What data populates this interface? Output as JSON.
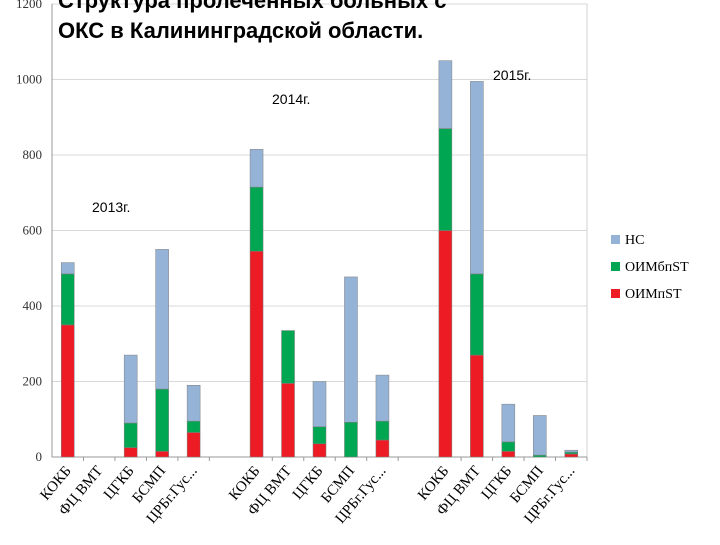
{
  "title": [
    "Структура пролеченных больных с",
    "ОКС в Калининградской области."
  ],
  "chart_data": {
    "type": "bar",
    "stacked": true,
    "ylim": [
      0,
      1200
    ],
    "yticks": [
      0,
      200,
      400,
      600,
      800,
      1000,
      1200
    ],
    "grid": true,
    "legend_position": "right",
    "groups": [
      {
        "label": "2013г.",
        "categories": [
          "КОКБ",
          "ФЦ ВМТ",
          "ЦГКБ",
          "БСМП",
          "ЦРБг.Гус..."
        ],
        "series_values": {
          "ОИМпST": [
            350,
            0,
            25,
            15,
            65
          ],
          "ОИМбпST": [
            135,
            0,
            65,
            165,
            30
          ],
          "НС": [
            30,
            0,
            180,
            370,
            95
          ]
        }
      },
      {
        "label": "2014г.",
        "categories": [
          "КОКБ",
          "ФЦ ВМТ",
          "ЦГКБ",
          "БСМП",
          "ЦРБг.Гус..."
        ],
        "series_values": {
          "ОИМпST": [
            545,
            195,
            35,
            0,
            45
          ],
          "ОИМбпST": [
            170,
            140,
            45,
            92,
            50
          ],
          "НС": [
            100,
            0,
            120,
            385,
            122
          ]
        }
      },
      {
        "label": "2015г.",
        "categories": [
          "КОКБ",
          "ФЦ ВМТ",
          "ЦГКБ",
          "БСМП",
          "ЦРБг.Гус..."
        ],
        "series_values": {
          "ОИМпST": [
            600,
            270,
            15,
            0,
            8
          ],
          "ОИМбпST": [
            270,
            215,
            25,
            5,
            5
          ],
          "НС": [
            180,
            510,
            100,
            105,
            5
          ]
        }
      }
    ],
    "series": [
      {
        "name": "НС",
        "color": "#95b3d7"
      },
      {
        "name": "ОИМбпST",
        "color": "#00a651"
      },
      {
        "name": "ОИМпST",
        "color": "#ed1c24"
      }
    ],
    "stack_order": [
      "ОИМпST",
      "ОИМбпST",
      "НС"
    ]
  }
}
